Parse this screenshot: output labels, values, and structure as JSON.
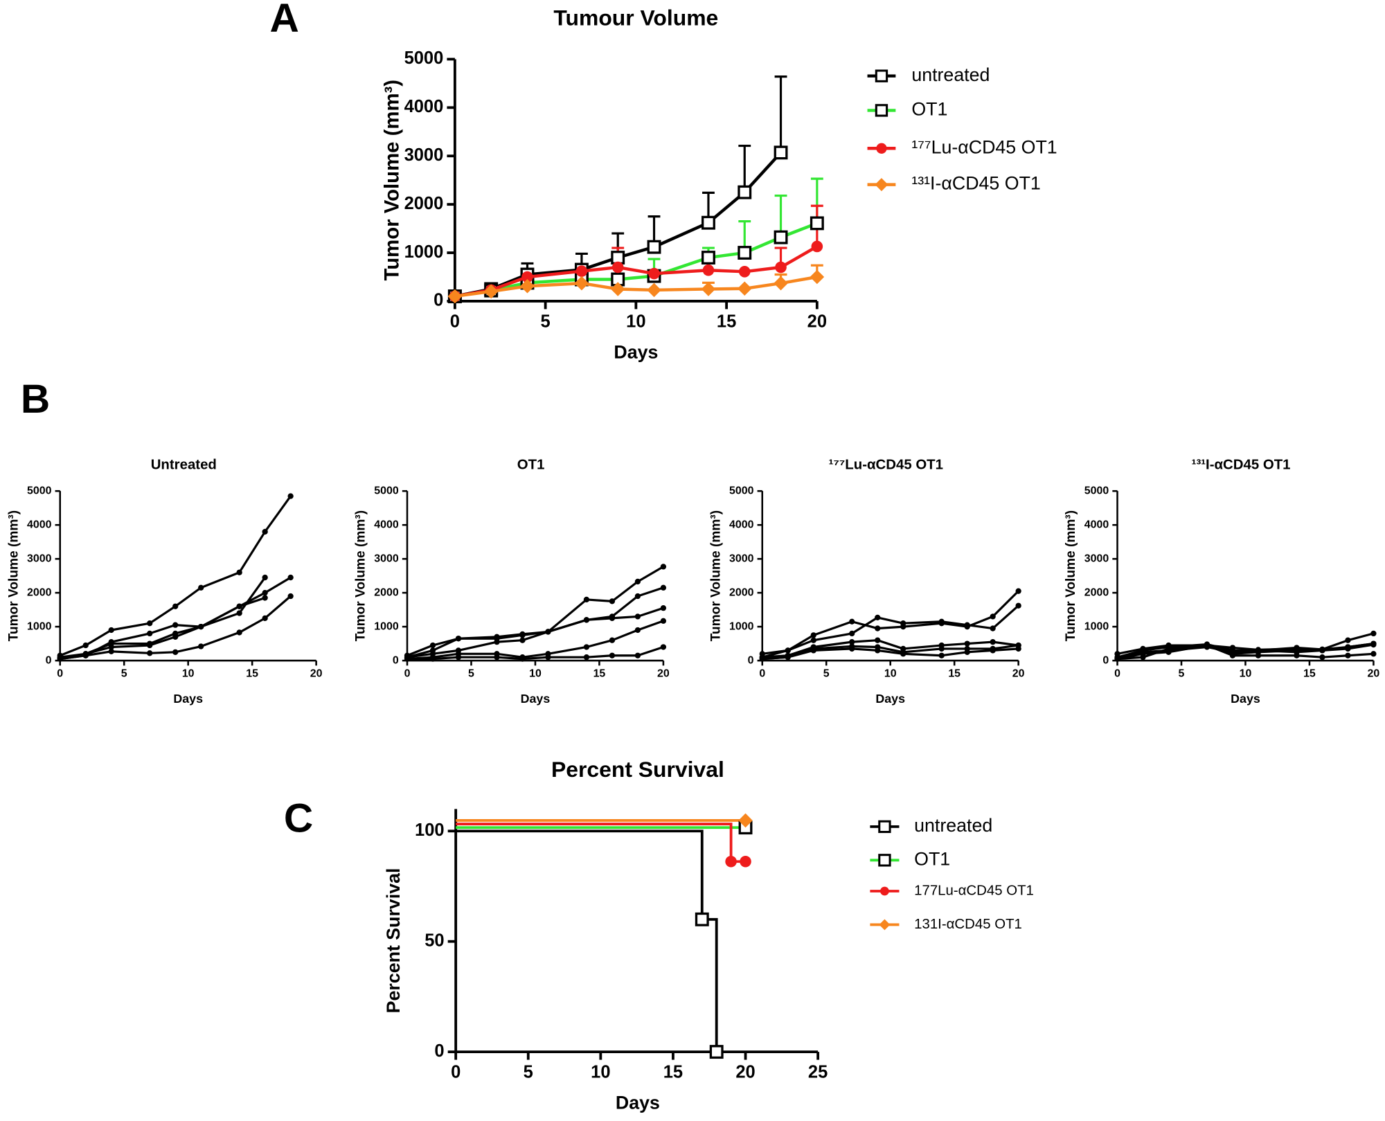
{
  "chart_data": [
    {
      "type": "line",
      "panel_label": "A",
      "title": "Tumour Volume",
      "x_label": "Days",
      "y_label": "Tumor Volume (mm³)",
      "legend": "right",
      "x": [
        0,
        2,
        4,
        7,
        9,
        11,
        14,
        16,
        18,
        20
      ],
      "xlim": [
        0,
        20
      ],
      "xticks": [
        0,
        5,
        10,
        15,
        20
      ],
      "ylim": [
        0,
        5000
      ],
      "yticks": [
        0,
        1000,
        2000,
        3000,
        4000,
        5000
      ],
      "series": [
        {
          "name": "untreated",
          "color": "#000000",
          "marker": "square",
          "values": [
            100,
            250,
            550,
            650,
            900,
            1120,
            1620,
            2250,
            3070,
            null
          ],
          "errors": [
            null,
            null,
            230,
            330,
            500,
            630,
            620,
            960,
            1570,
            null
          ]
        },
        {
          "name": "OT1",
          "color": "#33e633",
          "marker": "square",
          "values": [
            100,
            220,
            380,
            450,
            450,
            520,
            900,
            1000,
            1320,
            1610
          ],
          "errors": [
            null,
            null,
            null,
            null,
            null,
            350,
            200,
            650,
            860,
            920
          ]
        },
        {
          "name": "¹⁷⁷Lu-αCD45 OT1",
          "color": "#ee1c1c",
          "marker": "circle",
          "values": [
            100,
            230,
            500,
            620,
            700,
            570,
            640,
            610,
            700,
            1130
          ],
          "errors": [
            null,
            null,
            null,
            null,
            400,
            null,
            null,
            null,
            400,
            840
          ]
        },
        {
          "name": "¹³¹I-αCD45 OT1",
          "color": "#f7861e",
          "marker": "diamond",
          "values": [
            100,
            200,
            310,
            370,
            250,
            230,
            250,
            260,
            370,
            500
          ],
          "errors": [
            null,
            null,
            null,
            null,
            null,
            null,
            130,
            null,
            180,
            240
          ]
        }
      ]
    },
    {
      "type": "line",
      "panel_label": "B",
      "title": "Untreated",
      "x_label": "Days",
      "y_label": "Tumor Volume (mm³)",
      "marker": "circle",
      "x": [
        0,
        2,
        4,
        7,
        9,
        11,
        14,
        16,
        18,
        20
      ],
      "xlim": [
        0,
        20
      ],
      "xticks": [
        0,
        5,
        10,
        15,
        20
      ],
      "ylim": [
        0,
        5000
      ],
      "yticks": [
        0,
        1000,
        2000,
        3000,
        4000,
        5000
      ],
      "series": [
        {
          "color": "#000000",
          "values": [
            150,
            450,
            900,
            1100,
            1600,
            2150,
            2600,
            3800,
            4850,
            null
          ]
        },
        {
          "color": "#000000",
          "values": [
            100,
            200,
            500,
            500,
            800,
            1000,
            1600,
            2000,
            2450,
            null
          ]
        },
        {
          "color": "#000000",
          "values": [
            50,
            150,
            550,
            800,
            1050,
            1000,
            1400,
            2450,
            null,
            null
          ]
        },
        {
          "color": "#000000",
          "values": [
            80,
            200,
            400,
            450,
            700,
            1000,
            1600,
            1850,
            null,
            null
          ]
        },
        {
          "color": "#000000",
          "values": [
            50,
            150,
            270,
            220,
            250,
            420,
            830,
            1250,
            1900,
            null
          ]
        }
      ]
    },
    {
      "type": "line",
      "title": "OT1",
      "x_label": "Days",
      "y_label": "Tumor Volume (mm³)",
      "marker": "circle",
      "x": [
        0,
        2,
        4,
        7,
        9,
        11,
        14,
        16,
        18,
        20
      ],
      "xlim": [
        0,
        20
      ],
      "xticks": [
        0,
        5,
        10,
        15,
        20
      ],
      "ylim": [
        0,
        5000
      ],
      "yticks": [
        0,
        1000,
        2000,
        3000,
        4000,
        5000
      ],
      "series": [
        {
          "color": "#000000",
          "values": [
            150,
            450,
            650,
            700,
            780,
            850,
            1200,
            1300,
            1900,
            2150
          ]
        },
        {
          "color": "#000000",
          "values": [
            100,
            300,
            650,
            650,
            750,
            850,
            1800,
            1750,
            2330,
            2770
          ]
        },
        {
          "color": "#000000",
          "values": [
            100,
            200,
            300,
            550,
            600,
            850,
            1200,
            1250,
            1300,
            1550
          ]
        },
        {
          "color": "#000000",
          "values": [
            50,
            100,
            200,
            200,
            100,
            200,
            400,
            600,
            900,
            1170
          ]
        },
        {
          "color": "#000000",
          "values": [
            50,
            50,
            100,
            100,
            50,
            100,
            100,
            150,
            150,
            400
          ]
        }
      ]
    },
    {
      "type": "line",
      "title": "¹⁷⁷Lu-αCD45 OT1",
      "x_label": "Days",
      "y_label": "Tumor Volume (mm³)",
      "marker": "circle",
      "x": [
        0,
        2,
        4,
        7,
        9,
        11,
        14,
        16,
        18,
        20
      ],
      "xlim": [
        0,
        20
      ],
      "xticks": [
        0,
        5,
        10,
        15,
        20
      ],
      "ylim": [
        0,
        5000
      ],
      "yticks": [
        0,
        1000,
        2000,
        3000,
        4000,
        5000
      ],
      "series": [
        {
          "color": "#000000",
          "values": [
            200,
            300,
            750,
            1150,
            950,
            1000,
            1100,
            1000,
            1300,
            2050
          ]
        },
        {
          "color": "#000000",
          "values": [
            100,
            300,
            600,
            800,
            1270,
            1100,
            1150,
            1050,
            950,
            1620
          ]
        },
        {
          "color": "#000000",
          "values": [
            100,
            150,
            400,
            550,
            600,
            350,
            450,
            500,
            550,
            450
          ]
        },
        {
          "color": "#000000",
          "values": [
            50,
            100,
            350,
            420,
            400,
            250,
            350,
            350,
            350,
            450
          ]
        },
        {
          "color": "#000000",
          "values": [
            50,
            100,
            300,
            350,
            300,
            200,
            150,
            250,
            300,
            350
          ]
        }
      ]
    },
    {
      "type": "line",
      "title": "¹³¹I-αCD45 OT1",
      "x_label": "Days",
      "y_label": "Tumor Volume (mm³)",
      "marker": "circle",
      "x": [
        0,
        2,
        4,
        7,
        9,
        11,
        14,
        16,
        18,
        20
      ],
      "xlim": [
        0,
        20
      ],
      "xticks": [
        0,
        5,
        10,
        15,
        20
      ],
      "ylim": [
        0,
        5000
      ],
      "yticks": [
        0,
        1000,
        2000,
        3000,
        4000,
        5000
      ],
      "series": [
        {
          "color": "#000000",
          "values": [
            200,
            350,
            450,
            450,
            380,
            320,
            350,
            330,
            400,
            500
          ]
        },
        {
          "color": "#000000",
          "values": [
            100,
            300,
            400,
            480,
            300,
            300,
            380,
            330,
            600,
            800
          ]
        },
        {
          "color": "#000000",
          "values": [
            50,
            250,
            300,
            400,
            250,
            300,
            250,
            300,
            400,
            500
          ]
        },
        {
          "color": "#000000",
          "values": [
            50,
            200,
            250,
            450,
            150,
            150,
            150,
            100,
            150,
            200
          ]
        },
        {
          "color": "#000000",
          "values": [
            50,
            100,
            350,
            450,
            200,
            250,
            300,
            300,
            350,
            470
          ]
        }
      ]
    },
    {
      "type": "survival",
      "panel_label": "C",
      "title": "Percent Survival",
      "x_label": "Days",
      "y_label": "Percent Survival",
      "legend": "right",
      "xlim": [
        0,
        25
      ],
      "xticks": [
        0,
        5,
        10,
        15,
        20,
        25
      ],
      "ylim": [
        0,
        110
      ],
      "yticks": [
        0,
        50,
        100
      ],
      "series": [
        {
          "name": "untreated",
          "color": "#000000",
          "marker": "square",
          "x": [
            0,
            17,
            18
          ],
          "values": [
            100,
            60,
            0
          ]
        },
        {
          "name": "OT1",
          "color": "#33e633",
          "marker": "square",
          "x": [
            0,
            20
          ],
          "values": [
            100,
            100
          ]
        },
        {
          "name": "177Lu-αCD45 OT1",
          "color": "#ee1c1c",
          "marker": "circle",
          "x": [
            0,
            19,
            20
          ],
          "values": [
            100,
            83,
            83
          ]
        },
        {
          "name": "131I-αCD45 OT1",
          "color": "#f7861e",
          "marker": "diamond",
          "x": [
            0,
            20
          ],
          "values": [
            100,
            100
          ]
        }
      ]
    }
  ]
}
